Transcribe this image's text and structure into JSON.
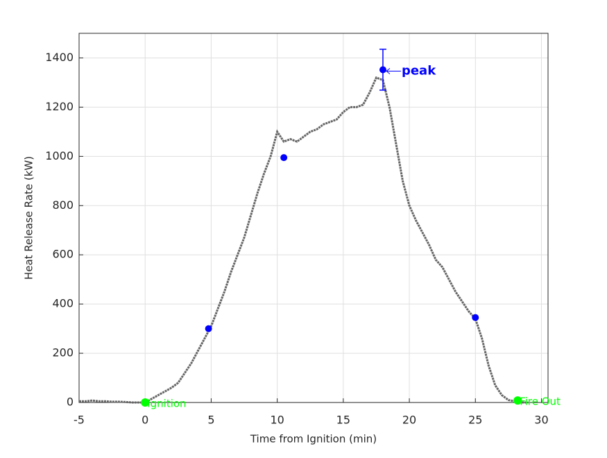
{
  "chart_data": {
    "type": "line",
    "xlabel": "Time from Ignition (min)",
    "ylabel": "Heat Release Rate (kW)",
    "xlim": [
      -5,
      30.5
    ],
    "ylim": [
      0,
      1500
    ],
    "xticks": [
      -5,
      0,
      5,
      10,
      15,
      20,
      25,
      30
    ],
    "yticks": [
      0,
      200,
      400,
      600,
      800,
      1000,
      1200,
      1400
    ],
    "grid": true,
    "series": [
      {
        "color": "#666666",
        "style": "line",
        "x": [
          -5,
          -4.5,
          -4,
          -3.5,
          -3,
          -2.5,
          -2,
          -1.5,
          -1,
          -0.5,
          0,
          0.5,
          1,
          1.5,
          2,
          2.5,
          3,
          3.5,
          4,
          4.5,
          5,
          5.5,
          6,
          6.5,
          7,
          7.5,
          8,
          8.5,
          9,
          9.5,
          10,
          10.5,
          11,
          11.5,
          12,
          12.5,
          13,
          13.5,
          14,
          14.5,
          15,
          15.5,
          16,
          16.5,
          17,
          17.5,
          18,
          18.5,
          19,
          19.5,
          20,
          20.5,
          21,
          21.5,
          22,
          22.5,
          23,
          23.5,
          24,
          24.5,
          25,
          25.5,
          26,
          26.5,
          27,
          27.5,
          28,
          28.5,
          29
        ],
        "values": [
          5,
          5,
          8,
          5,
          5,
          3,
          3,
          2,
          0,
          0,
          0,
          15,
          30,
          45,
          60,
          80,
          120,
          160,
          210,
          260,
          310,
          380,
          450,
          530,
          600,
          670,
          760,
          850,
          930,
          1000,
          1100,
          1060,
          1070,
          1060,
          1080,
          1100,
          1110,
          1130,
          1140,
          1150,
          1180,
          1200,
          1200,
          1210,
          1260,
          1320,
          1310,
          1200,
          1050,
          900,
          800,
          740,
          690,
          640,
          580,
          550,
          500,
          450,
          410,
          370,
          340,
          260,
          150,
          70,
          30,
          10,
          5,
          0,
          0
        ]
      },
      {
        "color": "#0000ff",
        "style": "markers",
        "x": [
          4.8,
          10.5,
          18,
          25
        ],
        "values": [
          300,
          995,
          1352,
          345
        ],
        "errors": [
          null,
          null,
          83,
          null
        ],
        "labels": [
          null,
          null,
          "peak",
          null
        ]
      },
      {
        "color": "#00ff00",
        "style": "markers",
        "x": [
          0,
          28.2
        ],
        "values": [
          0,
          8
        ],
        "labels": [
          "Ignition",
          "Fire Out"
        ]
      }
    ]
  }
}
